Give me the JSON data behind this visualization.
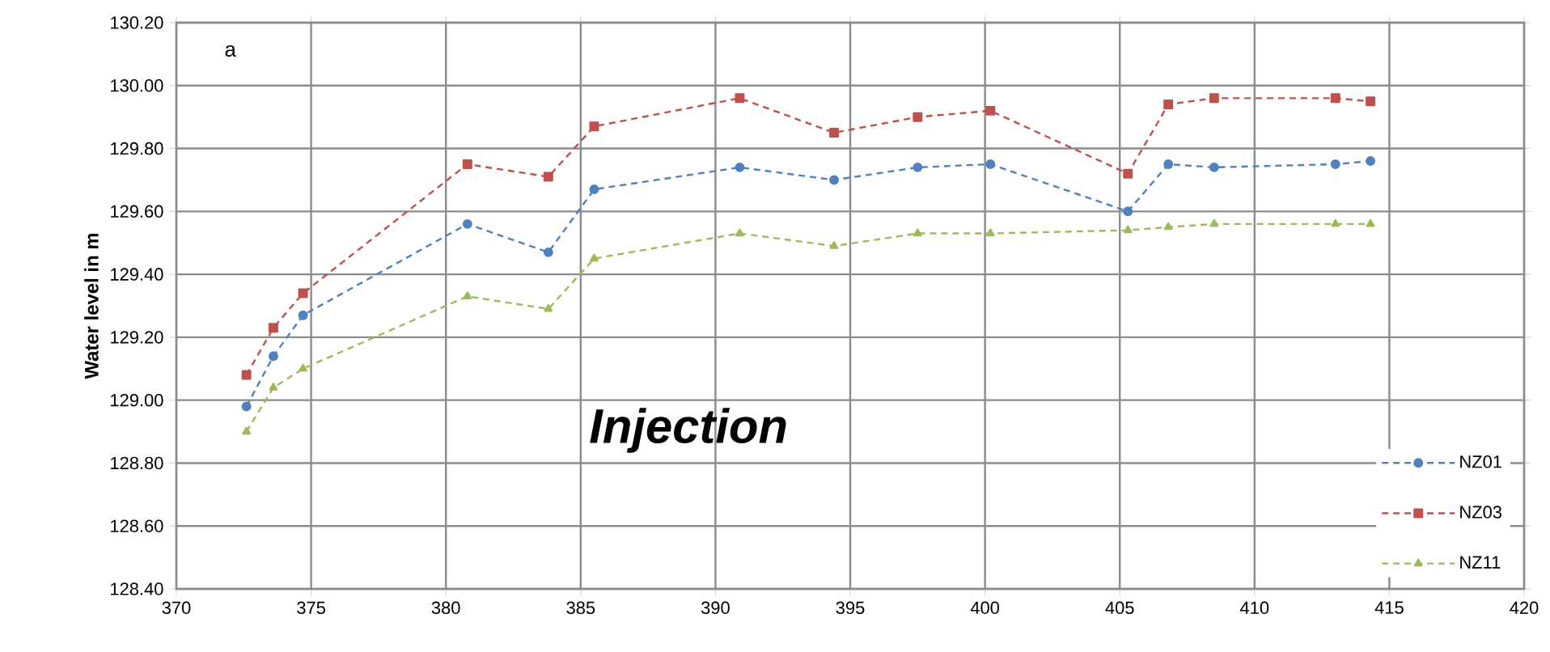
{
  "chart_data": {
    "type": "line",
    "ylabel": "Water level in m",
    "x": [
      372.6,
      373.6,
      374.7,
      380.8,
      383.8,
      385.5,
      390.9,
      394.4,
      397.5,
      400.2,
      405.3,
      406.8,
      408.5,
      413.0,
      414.3
    ],
    "series": [
      {
        "name": "NZ01",
        "color": "#4f81bd",
        "marker": "circle",
        "values": [
          128.98,
          129.14,
          129.27,
          129.56,
          129.47,
          129.67,
          129.74,
          129.7,
          129.74,
          129.75,
          129.6,
          129.75,
          129.74,
          129.75,
          129.76
        ]
      },
      {
        "name": "NZ03",
        "color": "#c0504d",
        "marker": "square",
        "values": [
          129.08,
          129.23,
          129.34,
          129.75,
          129.71,
          129.87,
          129.96,
          129.85,
          129.9,
          129.92,
          129.72,
          129.94,
          129.96,
          129.96,
          129.95
        ]
      },
      {
        "name": "NZ11",
        "color": "#9bbb59",
        "marker": "triangle",
        "values": [
          128.9,
          129.04,
          129.1,
          129.33,
          129.29,
          129.45,
          129.53,
          129.49,
          129.53,
          129.53,
          129.54,
          129.55,
          129.56,
          129.56,
          129.56
        ]
      }
    ],
    "xlim": [
      370,
      420
    ],
    "xticks": [
      370,
      375,
      380,
      385,
      390,
      395,
      400,
      405,
      410,
      415,
      420
    ],
    "ylim": [
      128.4,
      130.2
    ],
    "yticks": [
      {
        "value": 128.4,
        "label": "128.40"
      },
      {
        "value": 128.6,
        "label": "128.60"
      },
      {
        "value": 128.8,
        "label": "128.80"
      },
      {
        "value": 129.0,
        "label": "129.00"
      },
      {
        "value": 129.2,
        "label": "129.20"
      },
      {
        "value": 129.4,
        "label": "129.40"
      },
      {
        "value": 129.6,
        "label": "129.60"
      },
      {
        "value": 129.8,
        "label": "129.80"
      },
      {
        "value": 130.0,
        "label": "130.00"
      },
      {
        "value": 130.2,
        "label": "130.20"
      }
    ],
    "annotations": [
      "a",
      "Injection"
    ],
    "grid": true,
    "legend": "bottom right",
    "line_style": "dashed"
  }
}
